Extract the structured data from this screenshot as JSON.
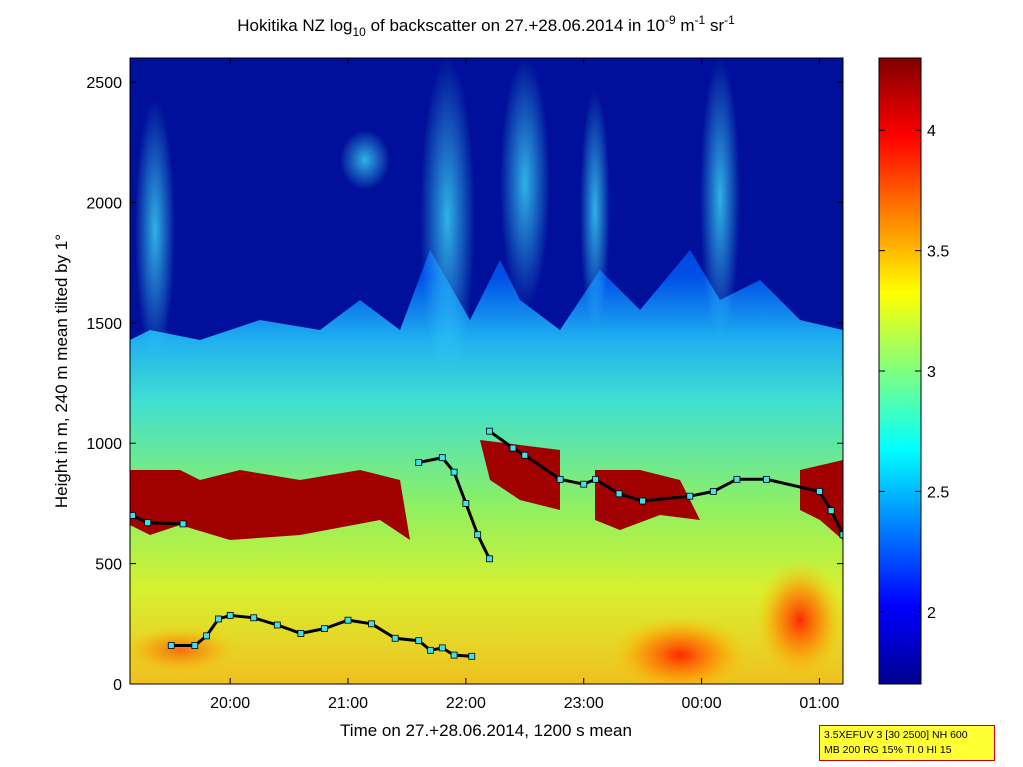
{
  "chart_data": {
    "type": "heatmap",
    "title": {
      "pre": "Hokitika NZ log",
      "sub": "10",
      "mid": " of backscatter on 27.+28.06.2014 in 10",
      "sup1": "-9",
      "unit1": " m",
      "sup2": "-1",
      "unit2": " sr",
      "sup3": "-1"
    },
    "xlabel": "Time on 27.+28.06.2014, 1200 s mean",
    "ylabel": "Height in m, 240 m mean tilted by 1°",
    "x_ticks": [
      "20:00",
      "21:00",
      "22:00",
      "23:00",
      "00:00",
      "01:00"
    ],
    "x_tick_hours": [
      20,
      21,
      22,
      23,
      24,
      25
    ],
    "xlim_hours": [
      19.15,
      25.2
    ],
    "y_ticks": [
      0,
      500,
      1000,
      1500,
      2000,
      2500
    ],
    "ylim": [
      0,
      2600
    ],
    "colorbar": {
      "range": [
        1.7,
        4.3
      ],
      "ticks": [
        2,
        2.5,
        3,
        3.5,
        4
      ],
      "tick_labels": [
        "2",
        "2.5",
        "3",
        "3.5",
        "4"
      ]
    },
    "series": [
      {
        "marker": "black-line-cyan-squares",
        "points": [
          [
            19.17,
            700
          ],
          [
            19.3,
            670
          ],
          [
            19.6,
            665
          ],
          [
            19.5,
            160
          ],
          [
            19.7,
            160
          ],
          [
            19.8,
            200
          ],
          [
            19.9,
            270
          ],
          [
            20.0,
            285
          ],
          [
            20.2,
            275
          ],
          [
            20.4,
            245
          ],
          [
            20.6,
            210
          ],
          [
            20.8,
            230
          ],
          [
            21.0,
            265
          ],
          [
            21.2,
            250
          ],
          [
            21.4,
            190
          ],
          [
            21.6,
            180
          ],
          [
            21.7,
            140
          ],
          [
            21.8,
            150
          ],
          [
            21.9,
            120
          ],
          [
            22.05,
            115
          ],
          [
            21.6,
            920
          ],
          [
            21.8,
            940
          ],
          [
            21.9,
            880
          ],
          [
            22.0,
            750
          ],
          [
            22.1,
            620
          ],
          [
            22.2,
            520
          ],
          [
            22.2,
            1050
          ],
          [
            22.4,
            980
          ],
          [
            22.5,
            950
          ],
          [
            22.8,
            850
          ],
          [
            23.0,
            830
          ],
          [
            23.1,
            850
          ],
          [
            23.3,
            790
          ],
          [
            23.5,
            760
          ],
          [
            23.9,
            780
          ],
          [
            24.1,
            800
          ],
          [
            24.3,
            850
          ],
          [
            24.55,
            850
          ],
          [
            25.0,
            800
          ],
          [
            25.1,
            720
          ],
          [
            25.2,
            620
          ]
        ]
      }
    ],
    "colormap": "jet"
  },
  "info_box": {
    "line1": "3.5XEFUV 3 [30 2500] NH 600",
    "line2": "MB 200 RG 15% TI 0 HI 15"
  }
}
